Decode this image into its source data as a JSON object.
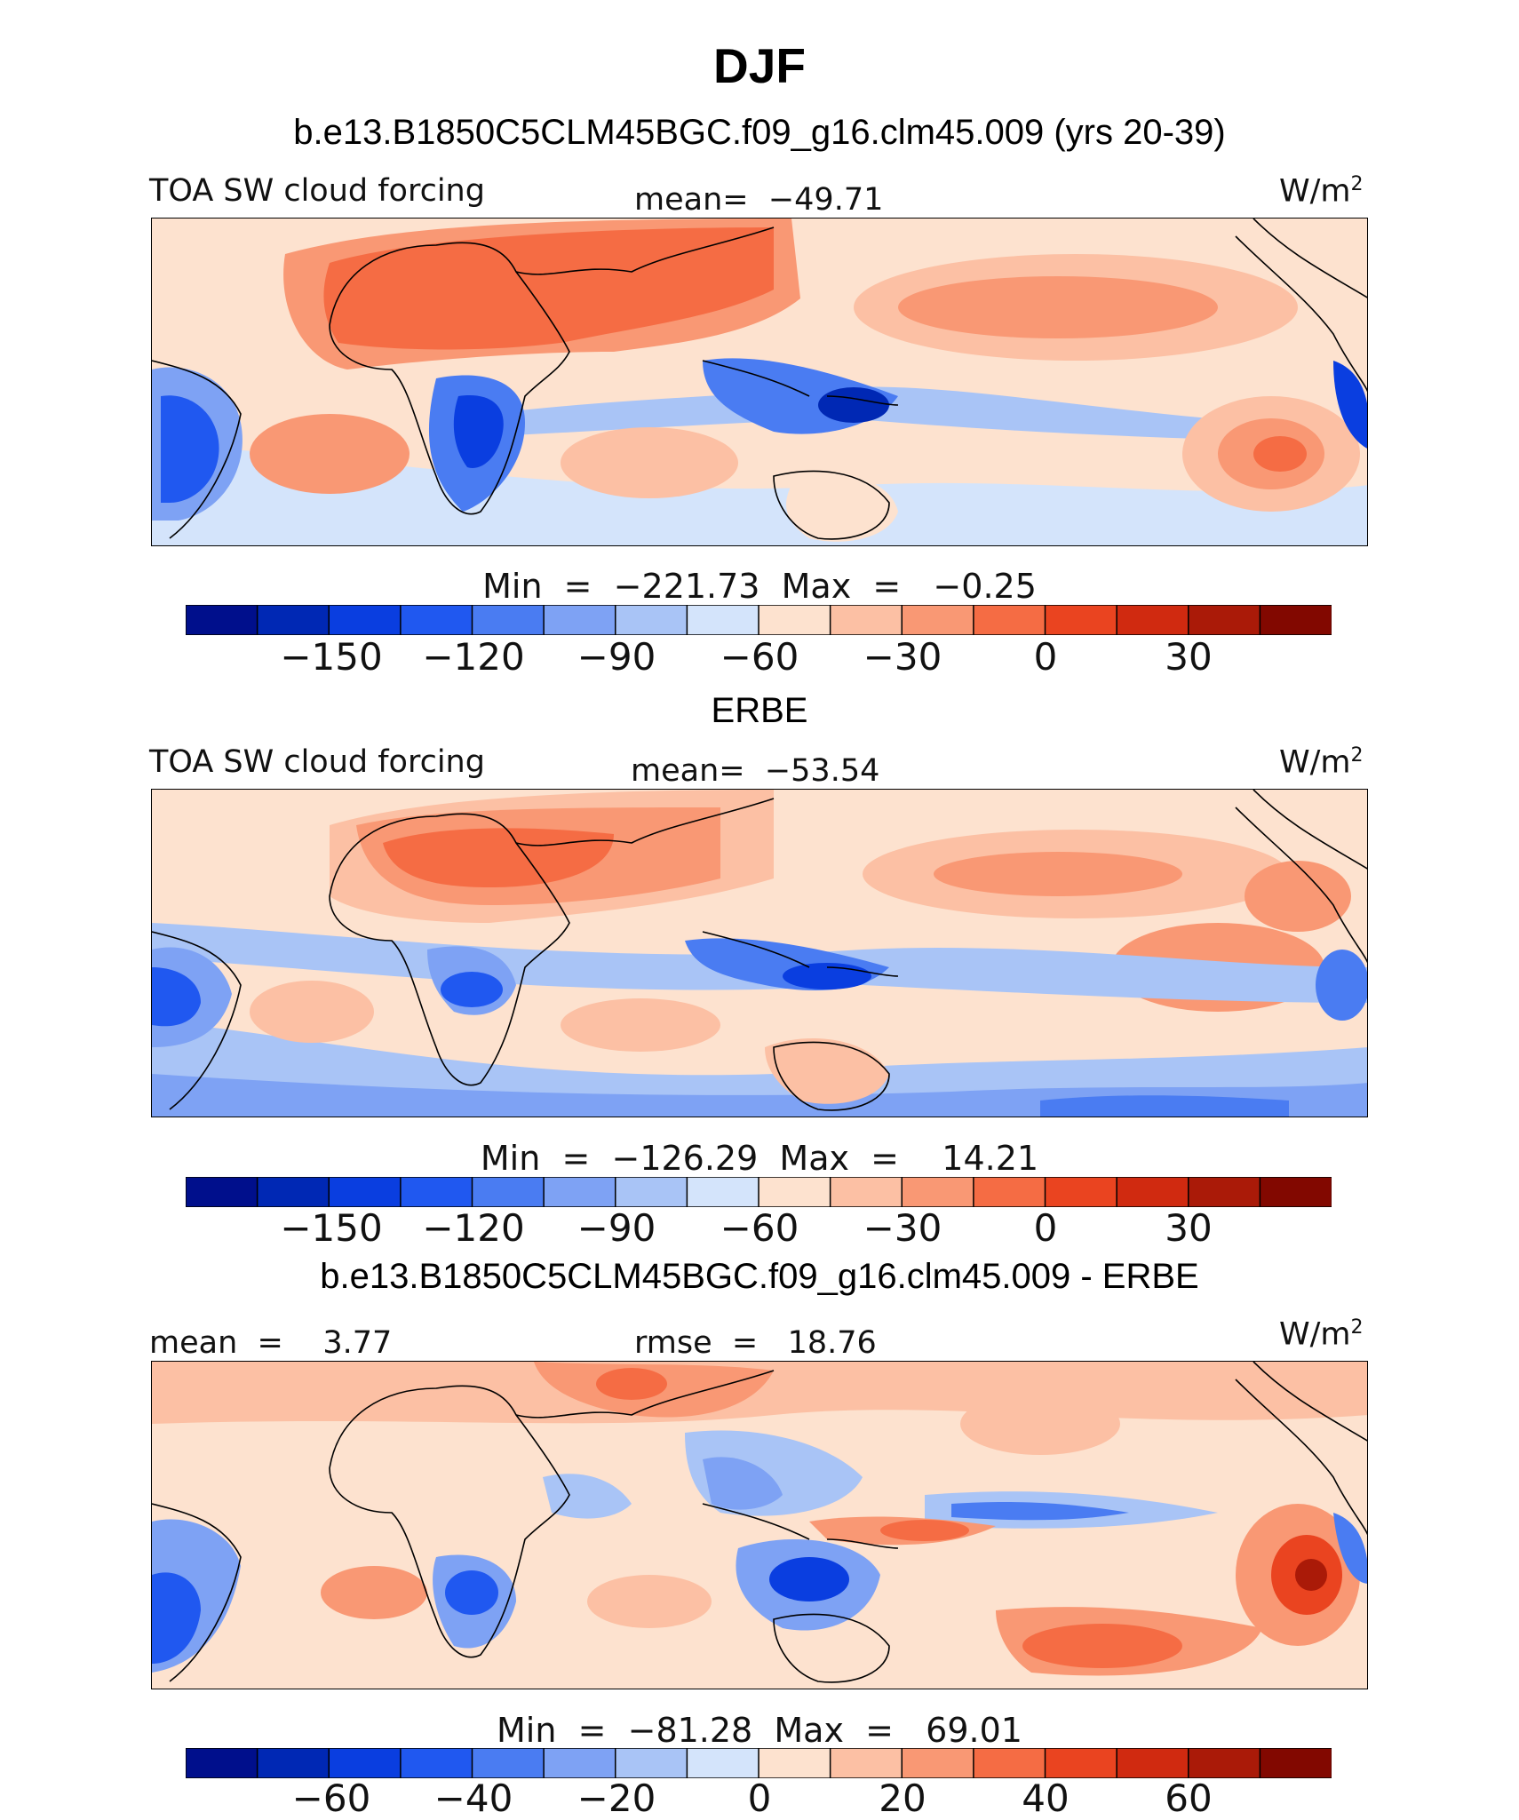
{
  "season": "DJF",
  "panels": [
    {
      "id": "model",
      "title": "b.e13.B1850C5CLM45BGC.f09_g16.clm45.009 (yrs 20-39)",
      "left_label": "TOA SW cloud forcing",
      "center_label": "mean=  −49.71",
      "units": "W/m",
      "units_sup": "2",
      "minmax": "Min  =  −221.73  Max  =   −0.25",
      "colorbar_ticks": [
        "−150",
        "−120",
        "−90",
        "−60",
        "−30",
        "0",
        "30"
      ]
    },
    {
      "id": "obs",
      "title": "ERBE",
      "left_label": "TOA SW cloud forcing",
      "center_label": "mean=  −53.54",
      "units": "W/m",
      "units_sup": "2",
      "minmax": "Min  =  −126.29  Max  =    14.21",
      "colorbar_ticks": [
        "−150",
        "−120",
        "−90",
        "−60",
        "−30",
        "0",
        "30"
      ]
    },
    {
      "id": "diff",
      "title": "b.e13.B1850C5CLM45BGC.f09_g16.clm45.009 - ERBE",
      "left_label": "mean  =    3.77",
      "center_label": "rmse  =   18.76",
      "units": "W/m",
      "units_sup": "2",
      "minmax": "Min  =  −81.28  Max  =   69.01",
      "colorbar_ticks": [
        "−60",
        "−40",
        "−20",
        "0",
        "20",
        "40",
        "60"
      ]
    }
  ],
  "colorbar_colors": [
    "#000f8c",
    "#0028b4",
    "#0a3ee0",
    "#2058f0",
    "#4a7cf2",
    "#7ea2f4",
    "#a9c4f6",
    "#d4e4fb",
    "#fde2cf",
    "#fcc0a4",
    "#f99874",
    "#f56c44",
    "#ea4420",
    "#d02a10",
    "#aa1a08",
    "#820800"
  ]
}
